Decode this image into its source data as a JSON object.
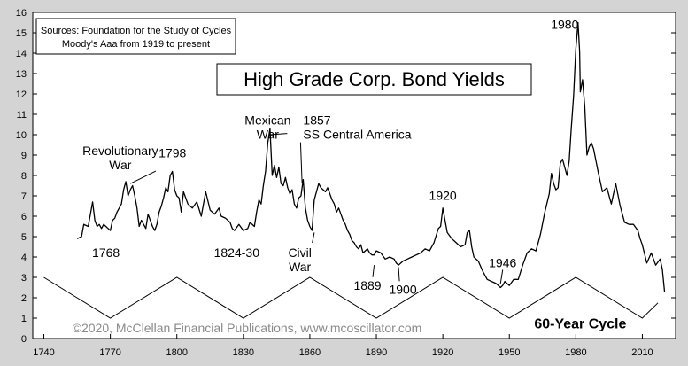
{
  "chart_data": {
    "type": "line",
    "title": "High Grade Corp. Bond Yields",
    "sources": [
      "Sources: Foundation for the Study of Cycles",
      "Moody's Aaa from 1919 to present"
    ],
    "copyright": "©2020, McClellan Financial Publications, www.mcoscillator.com",
    "xlabel": "",
    "ylabel": "",
    "xlim": [
      1735,
      2025
    ],
    "ylim": [
      0,
      16
    ],
    "x_ticks": [
      1740,
      1770,
      1800,
      1830,
      1860,
      1890,
      1920,
      1950,
      1980,
      2010
    ],
    "y_ticks": [
      0,
      1,
      2,
      3,
      4,
      5,
      6,
      7,
      8,
      9,
      10,
      11,
      12,
      13,
      14,
      15,
      16
    ],
    "grid": false,
    "colors": {
      "plot_bg": "#ffffff",
      "frame_bg": "#d4d4d4",
      "line": "#000000"
    },
    "series": [
      {
        "name": "",
        "x": [
          1755,
          1757,
          1758,
          1760,
          1761,
          1762,
          1763,
          1764,
          1765,
          1766,
          1767,
          1768,
          1769,
          1770,
          1771,
          1772,
          1773,
          1774,
          1775,
          1776,
          1777,
          1778,
          1779,
          1780,
          1781,
          1782,
          1783,
          1784,
          1785,
          1786,
          1787,
          1788,
          1789,
          1790,
          1791,
          1792,
          1793,
          1794,
          1795,
          1796,
          1797,
          1798,
          1799,
          1800,
          1801,
          1802,
          1803,
          1805,
          1807,
          1809,
          1811,
          1813,
          1815,
          1817,
          1819,
          1820,
          1822,
          1824,
          1825,
          1826,
          1828,
          1830,
          1832,
          1833,
          1835,
          1836,
          1837,
          1838,
          1839,
          1840,
          1841,
          1842,
          1843,
          1844,
          1845,
          1846,
          1847,
          1848,
          1849,
          1850,
          1851,
          1852,
          1853,
          1854,
          1855,
          1856,
          1857,
          1858,
          1859,
          1860,
          1861,
          1862,
          1863,
          1864,
          1865,
          1866,
          1867,
          1868,
          1869,
          1870,
          1871,
          1872,
          1873,
          1874,
          1875,
          1876,
          1877,
          1878,
          1879,
          1880,
          1881,
          1882,
          1883,
          1884,
          1885,
          1886,
          1887,
          1888,
          1889,
          1890,
          1892,
          1894,
          1896,
          1898,
          1899,
          1900,
          1901,
          1902,
          1904,
          1906,
          1908,
          1910,
          1912,
          1914,
          1916,
          1918,
          1919,
          1920,
          1921,
          1922,
          1924,
          1926,
          1928,
          1930,
          1931,
          1932,
          1933,
          1934,
          1936,
          1938,
          1940,
          1942,
          1944,
          1946,
          1947,
          1948,
          1950,
          1952,
          1954,
          1956,
          1958,
          1960,
          1962,
          1964,
          1966,
          1968,
          1969,
          1970,
          1971,
          1972,
          1973,
          1974,
          1975,
          1976,
          1977,
          1978,
          1979,
          1980,
          1981,
          1981.7,
          1982,
          1983,
          1984,
          1985,
          1986,
          1987,
          1988,
          1990,
          1992,
          1994,
          1996,
          1998,
          2000,
          2002,
          2004,
          2006,
          2008,
          2009,
          2010,
          2012,
          2014,
          2016,
          2018,
          2019,
          2020
        ],
        "values": [
          4.9,
          5.0,
          5.6,
          5.5,
          6.1,
          6.7,
          5.8,
          5.5,
          5.6,
          5.4,
          5.6,
          5.5,
          5.4,
          5.3,
          5.8,
          5.9,
          6.2,
          6.4,
          6.6,
          7.3,
          7.7,
          7.0,
          7.3,
          7.5,
          7.0,
          6.4,
          5.5,
          5.8,
          5.6,
          5.4,
          6.1,
          5.8,
          5.5,
          5.3,
          5.6,
          6.2,
          6.5,
          6.9,
          7.4,
          7.2,
          8.0,
          8.2,
          7.3,
          7.0,
          6.9,
          6.2,
          7.2,
          6.6,
          6.4,
          6.7,
          6.0,
          7.2,
          6.3,
          6.1,
          6.4,
          6.0,
          5.9,
          5.7,
          5.4,
          5.3,
          5.6,
          5.3,
          5.4,
          5.7,
          5.5,
          6.2,
          6.8,
          6.6,
          7.5,
          8.2,
          9.6,
          10.3,
          8.0,
          8.5,
          7.9,
          8.4,
          7.6,
          7.5,
          7.9,
          7.4,
          7.1,
          7.3,
          6.6,
          6.4,
          6.9,
          7.0,
          7.8,
          6.4,
          5.8,
          5.5,
          5.3,
          6.8,
          7.2,
          7.6,
          7.4,
          7.3,
          7.2,
          7.4,
          7.1,
          6.8,
          6.6,
          6.2,
          6.4,
          6.1,
          5.8,
          5.6,
          5.3,
          5.1,
          4.8,
          4.7,
          4.5,
          4.4,
          4.6,
          4.2,
          4.3,
          4.4,
          4.2,
          4.1,
          4.1,
          4.3,
          4.2,
          3.9,
          4.0,
          3.9,
          3.7,
          3.6,
          3.7,
          3.8,
          3.9,
          4.0,
          4.1,
          4.2,
          4.4,
          4.3,
          4.7,
          5.4,
          5.5,
          6.4,
          5.8,
          5.2,
          4.9,
          4.7,
          4.5,
          4.6,
          5.2,
          5.3,
          4.5,
          4.0,
          3.8,
          3.3,
          2.9,
          2.8,
          2.7,
          2.5,
          2.6,
          2.8,
          2.6,
          2.9,
          2.9,
          3.6,
          4.2,
          4.4,
          4.3,
          5.1,
          6.2,
          7.1,
          8.1,
          7.6,
          7.3,
          7.4,
          8.6,
          8.8,
          8.4,
          8.0,
          8.7,
          10.4,
          11.9,
          14.2,
          15.5,
          14.1,
          12.1,
          12.7,
          11.4,
          9.0,
          9.4,
          9.6,
          9.3,
          8.2,
          7.2,
          7.4,
          6.6,
          7.6,
          6.5,
          5.7,
          5.6,
          5.6,
          5.3,
          4.9,
          4.6,
          3.7,
          4.2,
          3.6,
          3.9,
          3.4,
          2.3
        ]
      }
    ],
    "cycle_line": {
      "name": "60-Year Cycle",
      "x": [
        1740,
        1770,
        1800,
        1830,
        1860,
        1890,
        1920,
        1950,
        1980,
        2010,
        2017
      ],
      "values": [
        3.0,
        1.0,
        3.0,
        1.0,
        3.0,
        1.0,
        3.0,
        1.0,
        3.0,
        1.0,
        1.75
      ]
    },
    "annotations": [
      {
        "id": "revolutionary-war",
        "lines": [
          "Revolutionary",
          "War"
        ],
        "x": 1774.5,
        "y": 9.0,
        "anchor": "middle",
        "size": 14,
        "arrow": [
          1779,
          7.6
        ]
      },
      {
        "id": "1798",
        "lines": [
          "1798"
        ],
        "x": 1798,
        "y": 8.9,
        "anchor": "middle",
        "size": 14
      },
      {
        "id": "mexican-war",
        "lines": [
          "Mexican",
          "War"
        ],
        "x": 1841,
        "y": 10.5,
        "anchor": "middle",
        "size": 14,
        "arrow": [
          1842,
          10.0
        ]
      },
      {
        "id": "1857-ss-central-america",
        "lines": [
          "1857",
          "SS Central America"
        ],
        "x": 1857,
        "y": 10.5,
        "anchor": "start",
        "size": 14,
        "arrow": [
          1856.5,
          7.6
        ]
      },
      {
        "id": "1768",
        "lines": [
          "1768"
        ],
        "x": 1768,
        "y": 4.0,
        "anchor": "middle",
        "size": 14
      },
      {
        "id": "1824-30",
        "lines": [
          "1824-30"
        ],
        "x": 1827,
        "y": 4.0,
        "anchor": "middle",
        "size": 14
      },
      {
        "id": "civil-war",
        "lines": [
          "Civil",
          "War"
        ],
        "x": 1855.5,
        "y": 4.0,
        "anchor": "middle",
        "size": 14,
        "arrow": [
          1862,
          5.2
        ]
      },
      {
        "id": "1889",
        "lines": [
          "1889"
        ],
        "x": 1886,
        "y": 2.4,
        "anchor": "middle",
        "size": 14,
        "arrow": [
          1889,
          3.6
        ]
      },
      {
        "id": "1900",
        "lines": [
          "1900"
        ],
        "x": 1902,
        "y": 2.2,
        "anchor": "middle",
        "size": 14,
        "arrow": [
          1900,
          3.5
        ]
      },
      {
        "id": "1920",
        "lines": [
          "1920"
        ],
        "x": 1920,
        "y": 6.8,
        "anchor": "middle",
        "size": 14
      },
      {
        "id": "1946",
        "lines": [
          "1946"
        ],
        "x": 1947,
        "y": 3.5,
        "anchor": "middle",
        "size": 14,
        "arrow": [
          1946,
          2.7
        ]
      },
      {
        "id": "1980",
        "lines": [
          "1980"
        ],
        "x": 1975,
        "y": 15.2,
        "anchor": "middle",
        "size": 14
      },
      {
        "id": "60-year-cycle",
        "lines": [
          "60-Year Cycle"
        ],
        "x": 1982,
        "y": 0.5,
        "anchor": "middle",
        "size": 16,
        "bold": true
      }
    ]
  }
}
